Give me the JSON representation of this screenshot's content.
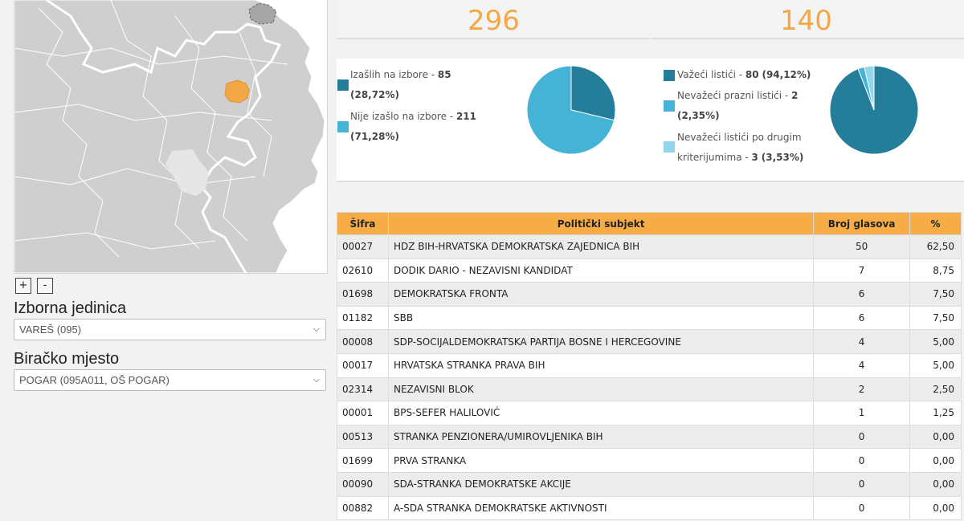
{
  "map": {
    "zoom_in": "+",
    "zoom_out": "-"
  },
  "izborna_jedinica": {
    "label": "Izborna jedinica",
    "value": "VAREŠ (095)"
  },
  "biracko_mjesto": {
    "label": "Biračko mjesto",
    "value": "POGAR (095A011, OŠ POGAR)"
  },
  "totals": {
    "left": "296",
    "right": "140"
  },
  "turnout": {
    "items": [
      {
        "text": "Izašlih na izbore - ",
        "count": "85",
        "pct": "(28,72%)",
        "color": "#247d99"
      },
      {
        "text": "Nije izašlo na izbore - ",
        "count": "211",
        "pct": "(71,28%)",
        "color": "#44b3d5"
      }
    ],
    "pie": [
      85,
      211
    ]
  },
  "ballots": {
    "items": [
      {
        "text": "Važeći listići - ",
        "count": "80",
        "pct": "(94,12%)",
        "color": "#247d99"
      },
      {
        "text": "Nevažeći prazni listići - ",
        "count": "2",
        "pct": "(2,35%)",
        "color": "#44b3d5"
      },
      {
        "text": "Nevažeći listići po drugim",
        "text2": "kriterijumima - ",
        "count": "3",
        "pct": "(3,53%)",
        "color": "#93d6ec"
      }
    ],
    "pie": [
      80,
      2,
      3
    ]
  },
  "table": {
    "headers": [
      "Šifra",
      "Politički subjekt",
      "Broj glasova",
      "%"
    ],
    "rows": [
      [
        "00027",
        "HDZ BIH-HRVATSKA DEMOKRATSKA ZAJEDNICA BIH",
        "50",
        "62,50"
      ],
      [
        "02610",
        "DODIK DARIO - NEZAVISNI KANDIDAT",
        "7",
        "8,75"
      ],
      [
        "01698",
        "DEMOKRATSKA FRONTA",
        "6",
        "7,50"
      ],
      [
        "01182",
        "SBB",
        "6",
        "7,50"
      ],
      [
        "00008",
        "SDP-SOCIJALDEMOKRATSKA PARTIJA BOSNE I HERCEGOVINE",
        "4",
        "5,00"
      ],
      [
        "00017",
        "HRVATSKA STRANKA PRAVA BIH",
        "4",
        "5,00"
      ],
      [
        "02314",
        "NEZAVISNI BLOK",
        "2",
        "2,50"
      ],
      [
        "00001",
        "BPS-SEFER HALILOVIĆ",
        "1",
        "1,25"
      ],
      [
        "00513",
        "STRANKA PENZIONERA/UMIROVLJENIKA BIH",
        "0",
        "0,00"
      ],
      [
        "01699",
        "PRVA STRANKA",
        "0",
        "0,00"
      ],
      [
        "00090",
        "SDA-STRANKA DEMOKRATSKE AKCIJE",
        "0",
        "0,00"
      ],
      [
        "00882",
        "A-SDA STRANKA DEMOKRATSKE AKTIVNOSTI",
        "0",
        "0,00"
      ]
    ]
  }
}
